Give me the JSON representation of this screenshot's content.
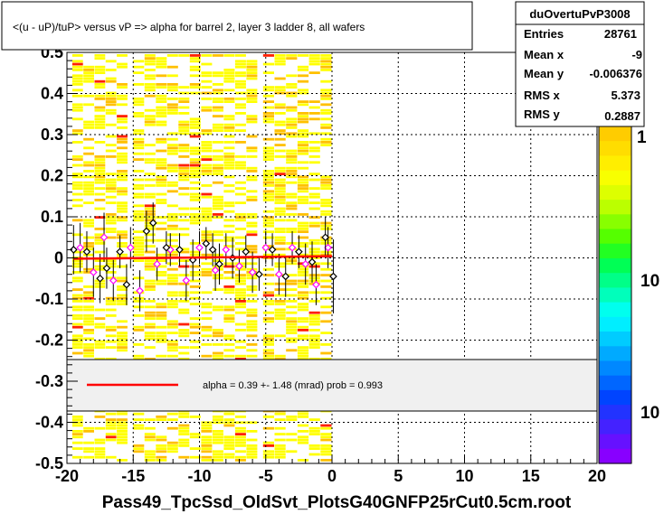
{
  "chart_data": {
    "type": "scatter",
    "title": "<(u - uP)/tuP> versus   vP => alpha for barrel 2, layer 3 ladder 8, all wafers",
    "footer": "Pass49_TpcSsd_OldSvt_PlotsG40GNFP25rCut0.5cm.root",
    "xlim": [
      -20,
      20
    ],
    "ylim": [
      -0.5,
      0.5
    ],
    "x_ticks": [
      -20,
      -15,
      -10,
      -5,
      0,
      5,
      10,
      15,
      20
    ],
    "x_tick_labels": [
      "-20",
      "-15",
      "-10",
      "-5",
      "0",
      "5",
      "10",
      "15",
      "20"
    ],
    "y_ticks": [
      -0.5,
      -0.4,
      -0.3,
      -0.2,
      -0.1,
      0,
      0.1,
      0.2,
      0.3,
      0.4,
      0.5
    ],
    "y_tick_labels": [
      "-0.5",
      "-0.4",
      "-0.3",
      "-0.2",
      "-0.1",
      "0",
      "0.1",
      "0.2",
      "0.3",
      "0.4",
      "0.5"
    ],
    "grid": true,
    "stats": {
      "name": "duOvertuPvP3008",
      "rows": [
        {
          "label": "Entries",
          "value": "28761"
        },
        {
          "label": "Mean x",
          "value": "-9"
        },
        {
          "label": "Mean y",
          "value": "-0.006376"
        },
        {
          "label": "RMS x",
          "value": "5.373"
        },
        {
          "label": "RMS y",
          "value": "0.2887"
        }
      ]
    },
    "fit_legend": "alpha =    0.39 +-  1.48 (mrad) prob = 0.993",
    "fit_line": {
      "x": [
        -19.5,
        0
      ],
      "y": [
        -0.002,
        0.004
      ],
      "color": "#ff0000"
    },
    "palette_labels": [
      "1",
      "10",
      "10"
    ],
    "heatmap_bands": [
      {
        "x": [
          -19.6,
          -15.4
        ]
      },
      {
        "x": [
          -15.0,
          -5.6
        ]
      },
      {
        "x": [
          -5.2,
          0.0
        ]
      }
    ],
    "profile_black": [
      {
        "x": -19.5,
        "y": 0.02,
        "err": 0.06
      },
      {
        "x": -18.5,
        "y": 0.015,
        "err": 0.05
      },
      {
        "x": -17.5,
        "y": -0.05,
        "err": 0.06
      },
      {
        "x": -17.0,
        "y": -0.025,
        "err": 0.05
      },
      {
        "x": -16.0,
        "y": 0.015,
        "err": 0.04
      },
      {
        "x": -15.5,
        "y": -0.065,
        "err": 0.05
      },
      {
        "x": -14.0,
        "y": 0.065,
        "err": 0.05
      },
      {
        "x": -13.5,
        "y": 0.085,
        "err": 0.05
      },
      {
        "x": -12.5,
        "y": 0.025,
        "err": 0.04
      },
      {
        "x": -11.5,
        "y": 0.02,
        "err": 0.04
      },
      {
        "x": -10.5,
        "y": -0.005,
        "err": 0.05
      },
      {
        "x": -9.5,
        "y": 0.035,
        "err": 0.04
      },
      {
        "x": -9.0,
        "y": 0.02,
        "err": 0.04
      },
      {
        "x": -8.5,
        "y": -0.015,
        "err": 0.05
      },
      {
        "x": -7.5,
        "y": 0.0,
        "err": 0.05
      },
      {
        "x": -6.5,
        "y": 0.015,
        "err": 0.04
      },
      {
        "x": -5.5,
        "y": -0.04,
        "err": 0.04
      },
      {
        "x": -4.5,
        "y": 0.02,
        "err": 0.04
      },
      {
        "x": -3.5,
        "y": -0.045,
        "err": 0.05
      },
      {
        "x": -2.5,
        "y": 0.015,
        "err": 0.04
      },
      {
        "x": -1.5,
        "y": -0.01,
        "err": 0.05
      },
      {
        "x": -0.5,
        "y": 0.05,
        "err": 0.05
      },
      {
        "x": 0.1,
        "y": -0.045,
        "err": 0.09
      }
    ],
    "profile_magenta": [
      {
        "x": -19.0,
        "y": 0.025,
        "err": 0.06
      },
      {
        "x": -18.0,
        "y": -0.035,
        "err": 0.06
      },
      {
        "x": -17.2,
        "y": 0.05,
        "err": 0.06
      },
      {
        "x": -16.5,
        "y": -0.055,
        "err": 0.05
      },
      {
        "x": -15.2,
        "y": 0.025,
        "err": 0.05
      },
      {
        "x": -14.5,
        "y": -0.08,
        "err": 0.05
      },
      {
        "x": -13.2,
        "y": -0.015,
        "err": 0.04
      },
      {
        "x": -12.2,
        "y": 0.02,
        "err": 0.04
      },
      {
        "x": -11.0,
        "y": -0.055,
        "err": 0.05
      },
      {
        "x": -10.0,
        "y": 0.025,
        "err": 0.04
      },
      {
        "x": -8.8,
        "y": -0.03,
        "err": 0.05
      },
      {
        "x": -8.0,
        "y": 0.02,
        "err": 0.04
      },
      {
        "x": -7.0,
        "y": -0.02,
        "err": 0.04
      },
      {
        "x": -6.0,
        "y": -0.035,
        "err": 0.05
      },
      {
        "x": -5.0,
        "y": 0.025,
        "err": 0.04
      },
      {
        "x": -4.0,
        "y": -0.04,
        "err": 0.05
      },
      {
        "x": -3.0,
        "y": 0.025,
        "err": 0.04
      },
      {
        "x": -2.0,
        "y": -0.015,
        "err": 0.05
      },
      {
        "x": -1.2,
        "y": -0.065,
        "err": 0.05
      },
      {
        "x": -0.3,
        "y": 0.025,
        "err": 0.05
      }
    ],
    "colors": {
      "frame": "#000000",
      "grid": "#000000",
      "fit": "#ff0000",
      "heat_yellow": "#ffff00",
      "heat_orange": "#ffc000",
      "heat_red": "#ff2000",
      "marker_magenta": "#ff00ff",
      "legend_bg": "#f0f0f0"
    }
  }
}
